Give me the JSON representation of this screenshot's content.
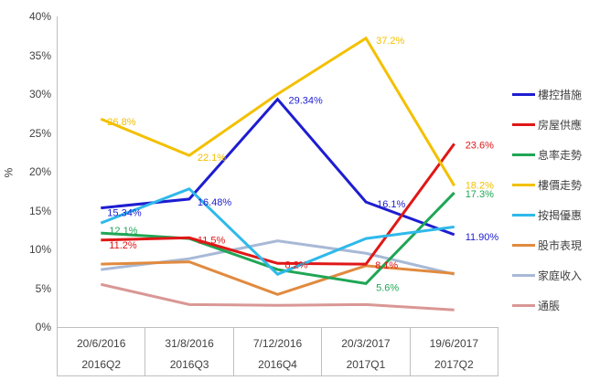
{
  "chart_data": {
    "type": "line",
    "title": "",
    "ylabel": "%",
    "ylim": [
      0,
      40
    ],
    "ytick_step": 5,
    "yticks": [
      "0%",
      "5%",
      "10%",
      "15%",
      "20%",
      "25%",
      "30%",
      "35%",
      "40%"
    ],
    "grid": false,
    "legend_position": "right",
    "categories": [
      {
        "date": "20/6/2016",
        "quarter": "2016Q2"
      },
      {
        "date": "31/8/2016",
        "quarter": "2016Q3"
      },
      {
        "date": "7/12/2016",
        "quarter": "2016Q4"
      },
      {
        "date": "20/3/2017",
        "quarter": "2017Q1"
      },
      {
        "date": "19/6/2017",
        "quarter": "2017Q2"
      }
    ],
    "series": [
      {
        "name": "樓控措施",
        "color": "#1d1dd1",
        "values": [
          15.34,
          16.48,
          29.34,
          16.1,
          11.9
        ],
        "labels": [
          {
            "i": 0,
            "text": "15.34%",
            "dx": 7,
            "dy": 9
          },
          {
            "i": 1,
            "text": "16.48%",
            "dx": 9,
            "dy": 7
          },
          {
            "i": 2,
            "text": "29.34%",
            "dx": 12,
            "dy": 5
          },
          {
            "i": 3,
            "text": "16.1%",
            "dx": 12,
            "dy": 6
          },
          {
            "i": 4,
            "text": "11.90%",
            "dx": 12,
            "dy": 6
          }
        ]
      },
      {
        "name": "房屋供應",
        "color": "#e01717",
        "values": [
          11.2,
          11.5,
          8.2,
          8.1,
          23.6
        ],
        "labels": [
          {
            "i": 0,
            "text": "11.2%",
            "dx": 9,
            "dy": 9
          },
          {
            "i": 1,
            "text": "11.5%",
            "dx": 9,
            "dy": 6
          },
          {
            "i": 2,
            "text": "8.2%",
            "dx": 8,
            "dy": 5
          },
          {
            "i": 3,
            "text": "8.1%",
            "dx": 10,
            "dy": 5
          },
          {
            "i": 4,
            "text": "23.6%",
            "dx": 12,
            "dy": 5
          }
        ]
      },
      {
        "name": "息率走勢",
        "color": "#1fa655",
        "values": [
          12.1,
          11.4,
          7.4,
          5.6,
          17.3
        ],
        "labels": [
          {
            "i": 0,
            "text": "12.1%",
            "dx": 9,
            "dy": 1
          },
          {
            "i": 3,
            "text": "5.6%",
            "dx": 11,
            "dy": 8
          },
          {
            "i": 4,
            "text": "17.3%",
            "dx": 12,
            "dy": 5
          }
        ]
      },
      {
        "name": "樓價走勢",
        "color": "#f3c000",
        "values": [
          26.8,
          22.1,
          30.0,
          37.2,
          18.2
        ],
        "labels": [
          {
            "i": 0,
            "text": "26.8%",
            "dx": 7,
            "dy": 7
          },
          {
            "i": 1,
            "text": "22.1%",
            "dx": 9,
            "dy": 6
          },
          {
            "i": 3,
            "text": "37.2%",
            "dx": 11,
            "dy": 6
          },
          {
            "i": 4,
            "text": "18.2%",
            "dx": 12,
            "dy": 3
          }
        ]
      },
      {
        "name": "按揭優惠",
        "color": "#2fb9ea",
        "values": [
          13.4,
          17.8,
          6.8,
          11.4,
          12.9
        ],
        "labels": []
      },
      {
        "name": "股市表現",
        "color": "#e18a3f",
        "values": [
          8.1,
          8.4,
          4.2,
          7.9,
          6.9
        ],
        "labels": []
      },
      {
        "name": "家庭收入",
        "color": "#a8b9d6",
        "values": [
          7.4,
          8.8,
          11.1,
          9.5,
          6.8
        ],
        "labels": []
      },
      {
        "name": "通脹",
        "color": "#d99795",
        "values": [
          5.5,
          2.9,
          2.8,
          2.9,
          2.2
        ],
        "labels": []
      }
    ]
  }
}
